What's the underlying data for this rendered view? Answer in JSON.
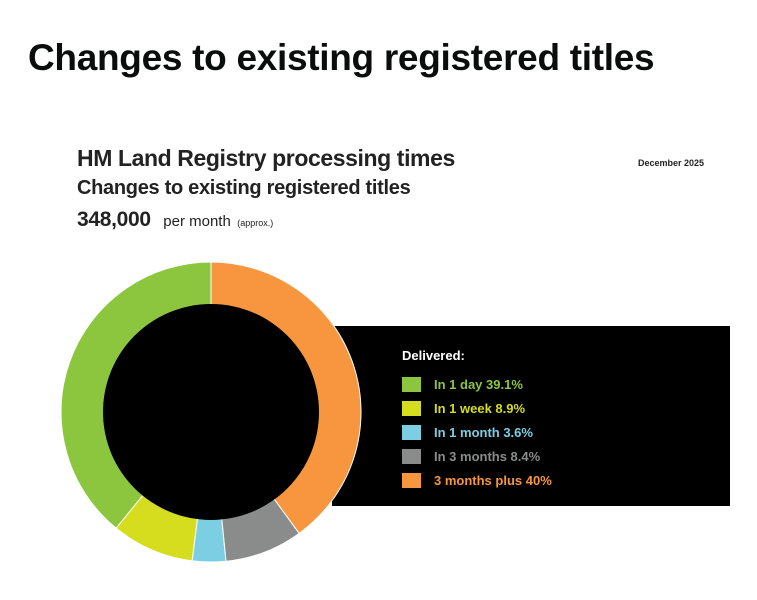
{
  "page": {
    "heading": "Changes to existing registered titles"
  },
  "chart_data": {
    "type": "pie",
    "donut": true,
    "title": "HM Land Registry processing times",
    "subtitle": "Changes to existing registered titles",
    "date": "December 2025",
    "volume": {
      "value": "348,000",
      "unit": "per month",
      "note": "(approx.)"
    },
    "legend_title": "Delivered:",
    "slices": [
      {
        "label": "In 1 day 39.1%",
        "value": 39.1,
        "color": "#8cc63f"
      },
      {
        "label": "In 1 week 8.9%",
        "value": 8.9,
        "color": "#d6dd1e"
      },
      {
        "label": "In 1 month 3.6%",
        "value": 3.6,
        "color": "#7ccfe3"
      },
      {
        "label": "In 3 months 8.4%",
        "value": 8.4,
        "color": "#8a8c8c"
      },
      {
        "label": "3 months plus 40%",
        "value": 40,
        "color": "#f7963e"
      }
    ],
    "center_color": "#000000",
    "legend_panel_color": "#000000",
    "legend_placement": "right"
  }
}
